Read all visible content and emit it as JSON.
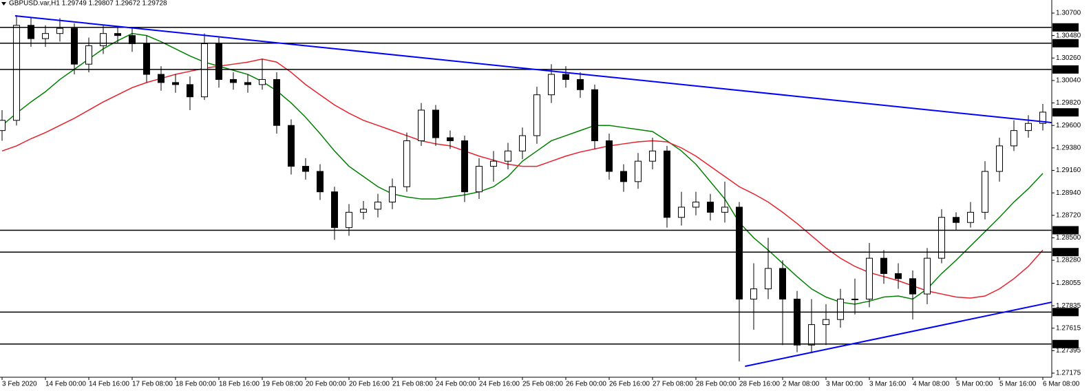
{
  "chart_data": {
    "type": "candlestick",
    "title": "GBPUSD.var,H1  1.29749 1.29807 1.29672 1.29728",
    "categories": [
      "3 Feb 2020",
      null,
      null,
      "14 Feb 00:00",
      null,
      null,
      "14 Feb 16:00",
      null,
      null,
      "17 Feb 08:00",
      null,
      null,
      "18 Feb 00:00",
      null,
      null,
      "18 Feb 16:00",
      null,
      null,
      "19 Feb 08:00",
      null,
      null,
      "20 Feb 00:00",
      null,
      null,
      "20 Feb 16:00",
      null,
      null,
      "21 Feb 08:00",
      null,
      null,
      "24 Feb 00:00",
      null,
      null,
      "24 Feb 16:00",
      null,
      null,
      "25 Feb 08:00",
      null,
      null,
      "26 Feb 00:00",
      null,
      null,
      "26 Feb 16:00",
      null,
      null,
      "27 Feb 08:00",
      null,
      null,
      "28 Feb 00:00",
      null,
      null,
      "28 Feb 16:00",
      null,
      null,
      "2 Mar 08:00",
      null,
      null,
      "3 Mar 00:00",
      null,
      null,
      "3 Mar 16:00",
      null,
      null,
      "4 Mar 08:00",
      null,
      null,
      "5 Mar 00:00",
      null,
      null,
      "5 Mar 16:00",
      null,
      null,
      "6 Mar 08:00"
    ],
    "open": [
      1.2955,
      1.2965,
      1.3058,
      1.3045,
      1.305,
      1.3055,
      1.302,
      1.3038,
      1.305,
      1.3048,
      1.304,
      1.301,
      1.3002,
      1.3,
      1.2988,
      1.304,
      1.3005,
      1.3002,
      1.3,
      1.3005,
      1.296,
      1.292,
      1.2915,
      1.2895,
      1.286,
      1.2875,
      1.2878,
      1.2885,
      1.29,
      1.2945,
      1.2975,
      1.2948,
      1.2945,
      1.2895,
      1.292,
      1.2925,
      1.2935,
      1.295,
      1.299,
      1.301,
      1.3005,
      1.2995,
      1.2945,
      1.2915,
      1.2905,
      1.2925,
      1.2935,
      1.287,
      1.288,
      1.2885,
      1.2875,
      1.288,
      1.279,
      1.28,
      1.282,
      1.279,
      1.2745,
      1.2765,
      1.277,
      1.279,
      1.279,
      1.283,
      1.2815,
      1.281,
      1.2795,
      1.283,
      1.287,
      1.2865,
      1.2875,
      1.2915,
      1.294,
      1.2955,
      1.2962
    ],
    "high": [
      1.2975,
      1.3068,
      1.3066,
      1.3058,
      1.3065,
      1.306,
      1.3046,
      1.3058,
      1.3056,
      1.3056,
      1.3048,
      1.3018,
      1.301,
      1.3008,
      1.305,
      1.3046,
      1.3012,
      1.301,
      1.3025,
      1.3012,
      1.2966,
      1.2928,
      1.2922,
      1.29,
      1.2883,
      1.2886,
      1.2893,
      1.2908,
      1.2953,
      1.2982,
      1.298,
      1.2955,
      1.295,
      1.2928,
      1.2935,
      1.2943,
      1.2958,
      1.2998,
      1.302,
      1.3018,
      1.3012,
      1.3,
      1.2952,
      1.2922,
      1.2933,
      1.2948,
      1.294,
      1.2895,
      1.2895,
      1.2893,
      1.2905,
      1.2885,
      1.2825,
      1.285,
      1.2828,
      1.2798,
      1.279,
      1.2785,
      1.28,
      1.281,
      1.2845,
      1.2838,
      1.2825,
      1.2818,
      1.284,
      1.2878,
      1.2875,
      1.2885,
      1.2925,
      1.2948,
      1.2965,
      1.297,
      1.2981
    ],
    "low": [
      1.2945,
      1.296,
      1.3037,
      1.3037,
      1.3042,
      1.301,
      1.3012,
      1.303,
      1.304,
      1.3032,
      1.3002,
      1.2994,
      1.2992,
      1.2975,
      1.2985,
      1.2997,
      1.2995,
      1.2992,
      1.2995,
      1.2952,
      1.2912,
      1.2907,
      1.2887,
      1.2848,
      1.2852,
      1.2868,
      1.287,
      1.2878,
      1.2895,
      1.294,
      1.294,
      1.2937,
      1.2885,
      1.2888,
      1.2905,
      1.2917,
      1.2927,
      1.2942,
      1.2982,
      1.2997,
      1.2987,
      1.2937,
      1.2907,
      1.2895,
      1.2898,
      1.2917,
      1.286,
      1.2862,
      1.2872,
      1.2867,
      1.2865,
      1.2729,
      1.276,
      1.279,
      1.2745,
      1.2738,
      1.2737,
      1.2745,
      1.2762,
      1.2775,
      1.2782,
      1.2805,
      1.28,
      1.277,
      1.2785,
      1.2825,
      1.2857,
      1.286,
      1.2868,
      1.2905,
      1.2935,
      1.2948,
      1.2955
    ],
    "close": [
      1.2965,
      1.3058,
      1.3045,
      1.305,
      1.3055,
      1.302,
      1.3038,
      1.305,
      1.3048,
      1.304,
      1.301,
      1.3002,
      1.3,
      1.2988,
      1.304,
      1.3005,
      1.3002,
      1.3,
      1.3005,
      1.296,
      1.292,
      1.2915,
      1.2895,
      1.286,
      1.2875,
      1.2878,
      1.2885,
      1.29,
      1.2945,
      1.2975,
      1.2948,
      1.2945,
      1.2895,
      1.292,
      1.2925,
      1.2935,
      1.295,
      1.299,
      1.301,
      1.3005,
      1.2995,
      1.2945,
      1.2915,
      1.2905,
      1.2925,
      1.2935,
      1.287,
      1.288,
      1.2885,
      1.2875,
      1.288,
      1.279,
      1.28,
      1.282,
      1.279,
      1.2745,
      1.2765,
      1.277,
      1.279,
      1.279,
      1.283,
      1.2815,
      1.281,
      1.2795,
      1.283,
      1.287,
      1.2865,
      1.2875,
      1.2915,
      1.294,
      1.2955,
      1.2962,
      1.2973
    ],
    "overlays": [
      {
        "color": "#008000",
        "values": [
          1.296,
          1.2972,
          1.2983,
          1.2993,
          1.3005,
          1.3015,
          1.3025,
          1.3035,
          1.3043,
          1.305,
          1.3048,
          1.3042,
          1.3035,
          1.3028,
          1.3022,
          1.3018,
          1.3014,
          1.301,
          1.3003,
          1.2994,
          1.2982,
          1.2968,
          1.2952,
          1.2935,
          1.292,
          1.291,
          1.29,
          1.2893,
          1.289,
          1.2888,
          1.2888,
          1.289,
          1.2892,
          1.2895,
          1.29,
          1.291,
          1.2925,
          1.2935,
          1.2945,
          1.295,
          1.2955,
          1.296,
          1.296,
          1.2958,
          1.2956,
          1.2954,
          1.2945,
          1.2935,
          1.2922,
          1.2905,
          1.2888,
          1.2865,
          1.285,
          1.2838,
          1.2825,
          1.2812,
          1.28,
          1.2792,
          1.2787,
          1.2785,
          1.2788,
          1.2792,
          1.2793,
          1.279,
          1.28,
          1.2815,
          1.2828,
          1.2842,
          1.2856,
          1.287,
          1.2885,
          1.2898,
          1.2913
        ]
      },
      {
        "color": "#e8202c",
        "values": [
          1.2935,
          1.294,
          1.2947,
          1.2953,
          1.296,
          1.2967,
          1.2975,
          1.2983,
          1.299,
          1.2997,
          1.3002,
          1.3006,
          1.301,
          1.3013,
          1.3016,
          1.3018,
          1.302,
          1.3022,
          1.3025,
          1.3022,
          1.3012,
          1.3,
          1.299,
          1.298,
          1.2972,
          1.2965,
          1.296,
          1.2955,
          1.295,
          1.2945,
          1.2942,
          1.294,
          1.2935,
          1.293,
          1.2926,
          1.2922,
          1.292,
          1.292,
          1.2925,
          1.293,
          1.2934,
          1.2937,
          1.294,
          1.2942,
          1.2944,
          1.2945,
          1.2944,
          1.2938,
          1.293,
          1.292,
          1.291,
          1.29,
          1.2893,
          1.2885,
          1.2875,
          1.2864,
          1.2852,
          1.284,
          1.283,
          1.2822,
          1.2816,
          1.2812,
          1.2808,
          1.2803,
          1.2798,
          1.2795,
          1.2792,
          1.2791,
          1.2793,
          1.28,
          1.281,
          1.2822,
          1.2838
        ]
      }
    ],
    "trendlines": [
      {
        "color": "#0000ff",
        "x": [
          0.9,
          72.6
        ],
        "y": [
          1.30673,
          1.29628
        ]
      },
      {
        "color": "#0000ff",
        "x": [
          51.4,
          72.6
        ],
        "y": [
          1.27242,
          1.27869
        ]
      }
    ],
    "levels": [
      {
        "value": 1.3056,
        "label": "1.30560"
      },
      {
        "value": 1.30405,
        "label": "1.30405"
      },
      {
        "value": 1.30148,
        "label": "1.30148"
      },
      {
        "value": 1.28574,
        "label": "1.28574"
      },
      {
        "value": 1.2836,
        "label": "1.28360"
      },
      {
        "value": 1.27773,
        "label": "1.27773"
      },
      {
        "value": 1.2746,
        "label": "1.27460"
      }
    ],
    "last_price": {
      "value": 1.29728,
      "label": "1.29728"
    },
    "ylim": [
      1.27135,
      1.30828
    ],
    "yticks": [
      {
        "value": 1.307,
        "label": "1.30700"
      },
      {
        "value": 1.3048,
        "label": "1.30480"
      },
      {
        "value": 1.3026,
        "label": "1.30260"
      },
      {
        "value": 1.3004,
        "label": "1.30040"
      },
      {
        "value": 1.2982,
        "label": "1.29820"
      },
      {
        "value": 1.296,
        "label": "1.29600"
      },
      {
        "value": 1.2938,
        "label": "1.29380"
      },
      {
        "value": 1.2916,
        "label": "1.29160"
      },
      {
        "value": 1.2894,
        "label": "1.28940"
      },
      {
        "value": 1.2872,
        "label": "1.28720"
      },
      {
        "value": 1.285,
        "label": "1.28500"
      },
      {
        "value": 1.2828,
        "label": "1.28280"
      },
      {
        "value": 1.28055,
        "label": "1.28055"
      },
      {
        "value": 1.27835,
        "label": "1.27835"
      },
      {
        "value": 1.27615,
        "label": "1.27615"
      },
      {
        "value": 1.27395,
        "label": "1.27395"
      },
      {
        "value": 1.27175,
        "label": "1.27175"
      }
    ],
    "up_color": "#ffffff",
    "down_color": "#000000"
  }
}
